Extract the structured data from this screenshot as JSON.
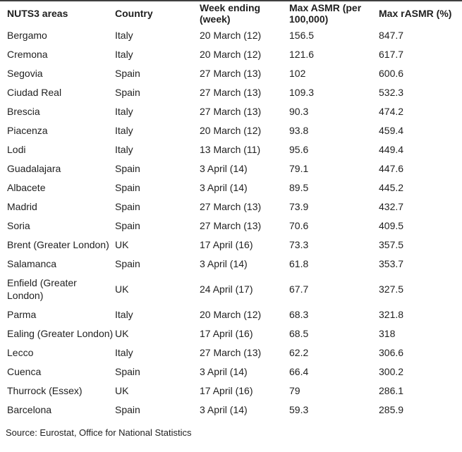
{
  "chart_data": {
    "type": "table",
    "columns": [
      "NUTS3 areas",
      "Country",
      "Week ending (week)",
      "Max ASMR (per 100,000)",
      "Max rASMR (%)"
    ],
    "rows": [
      {
        "area": "Bergamo",
        "country": "Italy",
        "week": "20 March (12)",
        "asmr": "156.5",
        "rasmr": "847.7"
      },
      {
        "area": "Cremona",
        "country": "Italy",
        "week": "20 March (12)",
        "asmr": "121.6",
        "rasmr": "617.7"
      },
      {
        "area": "Segovia",
        "country": "Spain",
        "week": "27 March (13)",
        "asmr": "102",
        "rasmr": "600.6"
      },
      {
        "area": "Ciudad Real",
        "country": "Spain",
        "week": "27 March (13)",
        "asmr": "109.3",
        "rasmr": "532.3"
      },
      {
        "area": "Brescia",
        "country": "Italy",
        "week": "27 March (13)",
        "asmr": "90.3",
        "rasmr": "474.2"
      },
      {
        "area": "Piacenza",
        "country": "Italy",
        "week": "20 March (12)",
        "asmr": "93.8",
        "rasmr": "459.4"
      },
      {
        "area": "Lodi",
        "country": "Italy",
        "week": "13 March (11)",
        "asmr": "95.6",
        "rasmr": "449.4"
      },
      {
        "area": "Guadalajara",
        "country": "Spain",
        "week": "3 April (14)",
        "asmr": "79.1",
        "rasmr": "447.6"
      },
      {
        "area": "Albacete",
        "country": "Spain",
        "week": "3 April (14)",
        "asmr": "89.5",
        "rasmr": "445.2"
      },
      {
        "area": "Madrid",
        "country": "Spain",
        "week": "27 March (13)",
        "asmr": "73.9",
        "rasmr": "432.7"
      },
      {
        "area": "Soria",
        "country": "Spain",
        "week": "27 March (13)",
        "asmr": "70.6",
        "rasmr": "409.5"
      },
      {
        "area": "Brent (Greater London)",
        "country": "UK",
        "week": "17 April (16)",
        "asmr": "73.3",
        "rasmr": "357.5"
      },
      {
        "area": "Salamanca",
        "country": "Spain",
        "week": "3 April (14)",
        "asmr": "61.8",
        "rasmr": "353.7"
      },
      {
        "area": "Enfield (Greater London)",
        "country": "UK",
        "week": "24 April (17)",
        "asmr": "67.7",
        "rasmr": "327.5"
      },
      {
        "area": "Parma",
        "country": "Italy",
        "week": "20 March (12)",
        "asmr": "68.3",
        "rasmr": "321.8"
      },
      {
        "area": "Ealing (Greater London)",
        "country": "UK",
        "week": "17 April (16)",
        "asmr": "68.5",
        "rasmr": "318"
      },
      {
        "area": "Lecco",
        "country": "Italy",
        "week": "27 March (13)",
        "asmr": "62.2",
        "rasmr": "306.6"
      },
      {
        "area": "Cuenca",
        "country": "Spain",
        "week": "3 April (14)",
        "asmr": "66.4",
        "rasmr": "300.2"
      },
      {
        "area": "Thurrock (Essex)",
        "country": "UK",
        "week": "17 April (16)",
        "asmr": "79",
        "rasmr": "286.1"
      },
      {
        "area": "Barcelona",
        "country": "Spain",
        "week": "3 April (14)",
        "asmr": "59.3",
        "rasmr": "285.9"
      }
    ]
  },
  "source": "Source: Eurostat, Office for National Statistics",
  "colors": {
    "text": "#1f1f1f",
    "top_rule": "#3f3f3f",
    "background": "#ffffff"
  }
}
